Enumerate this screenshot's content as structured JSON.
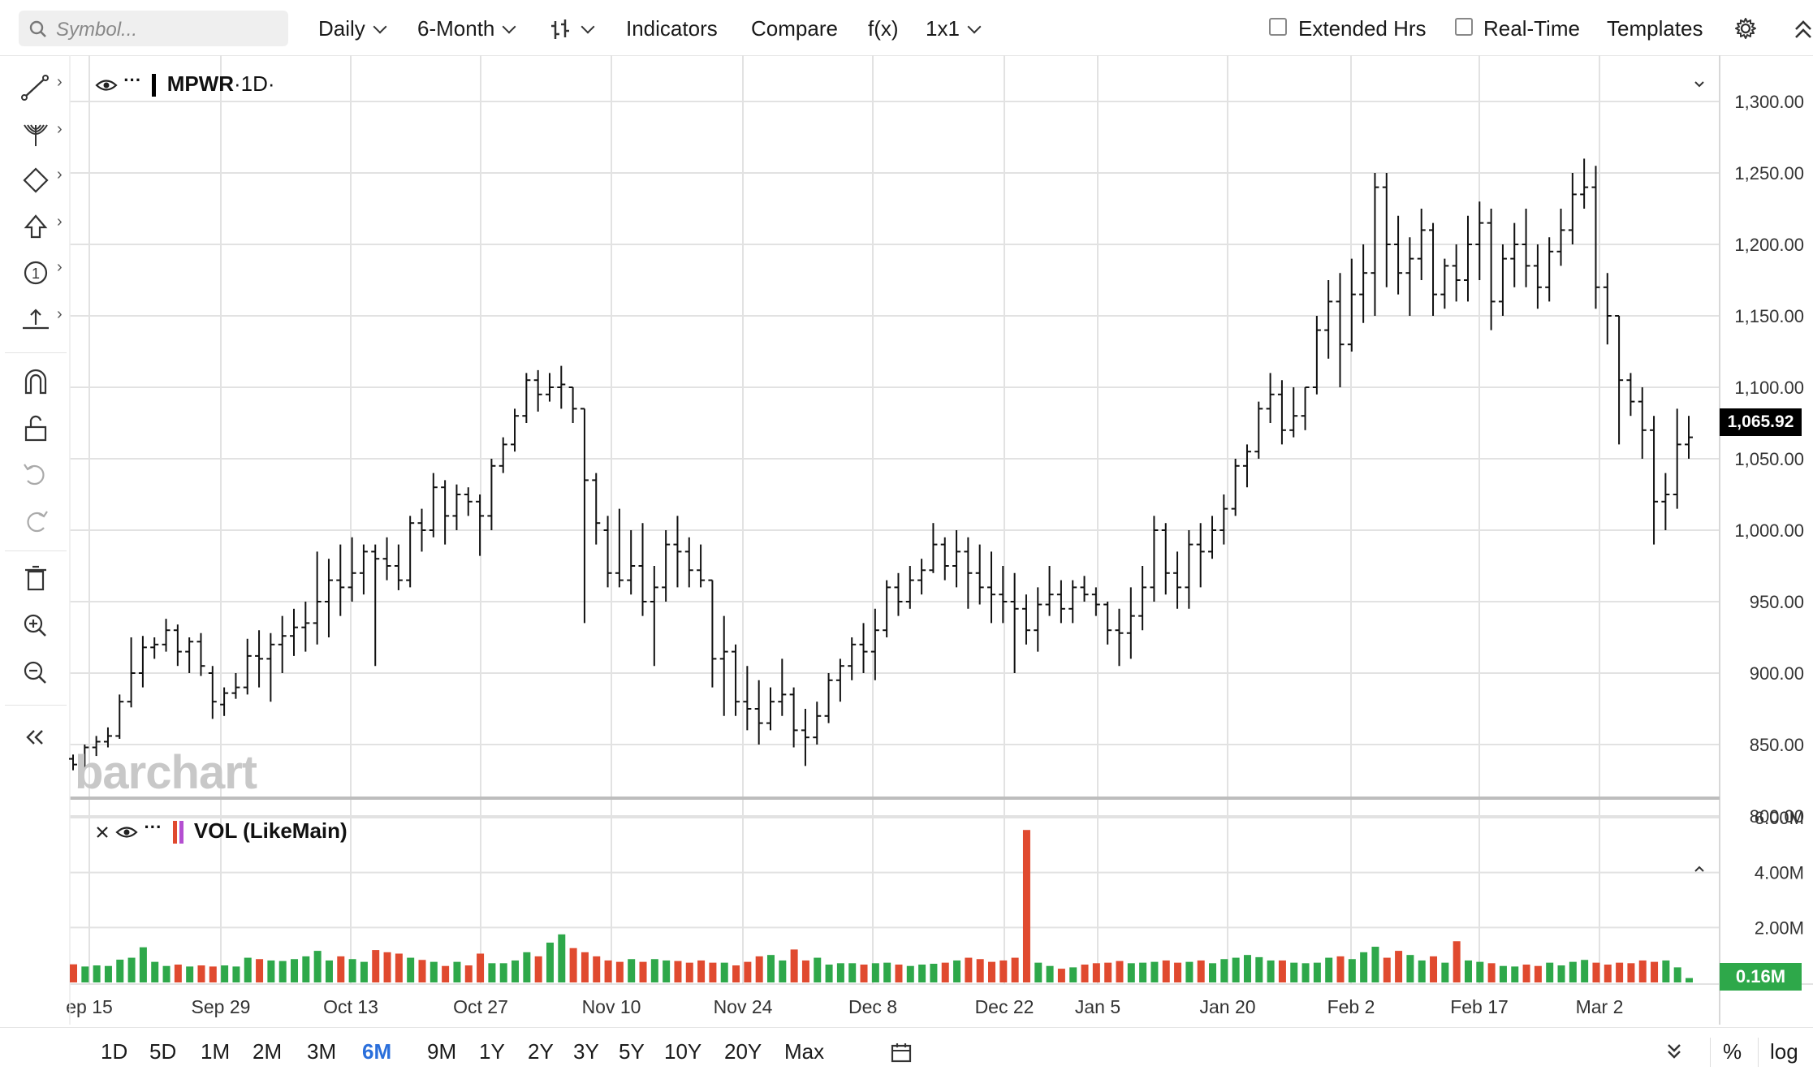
{
  "toolbar": {
    "search_placeholder": "Symbol...",
    "interval": "Daily",
    "period": "6-Month",
    "indicators": "Indicators",
    "compare": "Compare",
    "fx": "f(x)",
    "layout": "1x1",
    "extended_hours": "Extended Hrs",
    "real_time": "Real-Time",
    "templates": "Templates"
  },
  "legend": {
    "symbol": "MPWR",
    "interval": "·1D·",
    "volume_label": "VOL (LikeMain)"
  },
  "watermark": "barchart",
  "ranges": [
    "1D",
    "5D",
    "1M",
    "2M",
    "3M",
    "6M",
    "9M",
    "1Y",
    "2Y",
    "3Y",
    "5Y",
    "10Y",
    "20Y",
    "Max"
  ],
  "active_range": "6M",
  "bottom_right": {
    "percent": "%",
    "log": "log"
  },
  "colors": {
    "up": "#2ea84a",
    "down": "#e04a2f",
    "active": "#2a6fdb"
  },
  "chart_data": {
    "type": "ohlc-bar",
    "symbol": "MPWR",
    "price_axis": {
      "min": 800,
      "max": 1300,
      "ticks": [
        "800.00",
        "850.00",
        "900.00",
        "950.00",
        "1,000.00",
        "1,050.00",
        "1,100.00",
        "1,150.00",
        "1,200.00",
        "1,250.00",
        "1,300.00"
      ]
    },
    "volume_axis": {
      "max_millions": 6,
      "ticks": [
        "2.00M",
        "4.00M",
        "6.00M"
      ]
    },
    "x_labels": [
      "ep 15",
      "Sep 29",
      "Oct 13",
      "Oct 27",
      "Nov 10",
      "Nov 24",
      "Dec 8",
      "Dec 22",
      "Jan 5",
      "Jan 20",
      "Feb 2",
      "Feb 17",
      "Mar 2"
    ],
    "last_price": "1,065.92",
    "last_volume": "0.16M",
    "bars": [
      [
        840,
        843,
        832,
        836,
        0.66
      ],
      [
        836,
        850,
        833,
        848,
        0.58
      ],
      [
        848,
        856,
        842,
        852,
        0.62
      ],
      [
        852,
        862,
        848,
        856,
        0.6
      ],
      [
        856,
        885,
        854,
        880,
        0.83
      ],
      [
        880,
        925,
        876,
        900,
        0.9
      ],
      [
        900,
        926,
        890,
        918,
        1.28
      ],
      [
        918,
        925,
        910,
        920,
        0.75
      ],
      [
        920,
        938,
        915,
        930,
        0.6
      ],
      [
        930,
        934,
        905,
        915,
        0.65
      ],
      [
        915,
        925,
        900,
        922,
        0.58
      ],
      [
        922,
        928,
        898,
        905,
        0.62
      ],
      [
        900,
        905,
        868,
        880,
        0.58
      ],
      [
        878,
        890,
        870,
        886,
        0.62
      ],
      [
        886,
        900,
        882,
        890,
        0.58
      ],
      [
        890,
        924,
        885,
        912,
        0.9
      ],
      [
        912,
        930,
        890,
        910,
        0.85
      ],
      [
        910,
        928,
        880,
        920,
        0.8
      ],
      [
        920,
        940,
        900,
        926,
        0.78
      ],
      [
        926,
        945,
        912,
        932,
        0.85
      ],
      [
        932,
        950,
        915,
        935,
        0.95
      ],
      [
        935,
        985,
        920,
        950,
        1.15
      ],
      [
        950,
        980,
        925,
        965,
        0.8
      ],
      [
        965,
        990,
        940,
        960,
        0.95
      ],
      [
        960,
        995,
        950,
        970,
        0.85
      ],
      [
        970,
        990,
        955,
        985,
        0.75
      ],
      [
        985,
        990,
        905,
        980,
        1.18
      ],
      [
        980,
        995,
        965,
        975,
        1.1
      ],
      [
        975,
        990,
        958,
        965,
        1.05
      ],
      [
        965,
        1010,
        960,
        1005,
        0.9
      ],
      [
        1005,
        1015,
        985,
        1000,
        0.82
      ],
      [
        1000,
        1040,
        995,
        1030,
        0.75
      ],
      [
        1030,
        1035,
        990,
        1010,
        0.6
      ],
      [
        1010,
        1032,
        1000,
        1025,
        0.75
      ],
      [
        1025,
        1030,
        1010,
        1020,
        0.62
      ],
      [
        1020,
        1025,
        982,
        1010,
        1.05
      ],
      [
        1010,
        1050,
        1000,
        1045,
        0.7
      ],
      [
        1045,
        1065,
        1040,
        1060,
        0.7
      ],
      [
        1060,
        1085,
        1055,
        1080,
        0.8
      ],
      [
        1080,
        1110,
        1075,
        1105,
        1.1
      ],
      [
        1105,
        1112,
        1083,
        1095,
        0.95
      ],
      [
        1095,
        1110,
        1090,
        1100,
        1.45
      ],
      [
        1100,
        1115,
        1085,
        1102,
        1.75
      ],
      [
        1100,
        1100,
        1075,
        1085,
        1.25
      ],
      [
        1085,
        1040,
        935,
        1035,
        1.1
      ],
      [
        1035,
        1040,
        990,
        1005,
        0.95
      ],
      [
        1000,
        1010,
        960,
        970,
        0.8
      ],
      [
        970,
        1015,
        960,
        965,
        0.75
      ],
      [
        965,
        1000,
        955,
        975,
        0.85
      ],
      [
        975,
        1005,
        940,
        950,
        0.75
      ],
      [
        950,
        975,
        905,
        960,
        0.85
      ],
      [
        960,
        1000,
        950,
        990,
        0.8
      ],
      [
        990,
        1010,
        960,
        985,
        0.78
      ],
      [
        985,
        995,
        960,
        972,
        0.72
      ],
      [
        972,
        990,
        960,
        965,
        0.8
      ],
      [
        965,
        945,
        890,
        910,
        0.72
      ],
      [
        910,
        940,
        870,
        915,
        0.72
      ],
      [
        915,
        920,
        870,
        880,
        0.62
      ],
      [
        880,
        905,
        860,
        875,
        0.75
      ],
      [
        875,
        895,
        850,
        865,
        0.95
      ],
      [
        865,
        890,
        860,
        880,
        1.0
      ],
      [
        880,
        910,
        870,
        885,
        0.8
      ],
      [
        885,
        890,
        848,
        860,
        1.2
      ],
      [
        860,
        875,
        835,
        855,
        0.8
      ],
      [
        855,
        880,
        850,
        870,
        0.9
      ],
      [
        870,
        900,
        865,
        895,
        0.65
      ],
      [
        895,
        910,
        880,
        905,
        0.7
      ],
      [
        905,
        925,
        895,
        920,
        0.7
      ],
      [
        920,
        935,
        900,
        915,
        0.65
      ],
      [
        915,
        945,
        895,
        930,
        0.7
      ],
      [
        930,
        965,
        925,
        960,
        0.72
      ],
      [
        960,
        970,
        940,
        950,
        0.65
      ],
      [
        950,
        975,
        945,
        965,
        0.6
      ],
      [
        965,
        980,
        955,
        972,
        0.65
      ],
      [
        972,
        1005,
        970,
        990,
        0.68
      ],
      [
        990,
        995,
        965,
        975,
        0.72
      ],
      [
        975,
        1000,
        960,
        985,
        0.8
      ],
      [
        985,
        995,
        945,
        970,
        0.9
      ],
      [
        970,
        990,
        948,
        960,
        0.85
      ],
      [
        960,
        985,
        935,
        955,
        0.75
      ],
      [
        955,
        975,
        935,
        950,
        0.8
      ],
      [
        950,
        970,
        900,
        945,
        0.9
      ],
      [
        945,
        955,
        920,
        930,
        5.55
      ],
      [
        930,
        960,
        915,
        948,
        0.72
      ],
      [
        948,
        975,
        940,
        955,
        0.6
      ],
      [
        955,
        965,
        935,
        945,
        0.5
      ],
      [
        945,
        965,
        935,
        960,
        0.55
      ],
      [
        960,
        968,
        950,
        955,
        0.65
      ],
      [
        955,
        960,
        940,
        948,
        0.7
      ],
      [
        948,
        950,
        920,
        930,
        0.72
      ],
      [
        930,
        945,
        905,
        928,
        0.78
      ],
      [
        928,
        960,
        910,
        940,
        0.7
      ],
      [
        940,
        975,
        930,
        960,
        0.72
      ],
      [
        960,
        1010,
        950,
        1000,
        0.75
      ],
      [
        1000,
        1005,
        955,
        970,
        0.8
      ],
      [
        970,
        985,
        945,
        960,
        0.72
      ],
      [
        960,
        1000,
        945,
        990,
        0.75
      ],
      [
        990,
        1005,
        960,
        985,
        0.8
      ],
      [
        985,
        1010,
        980,
        1000,
        0.7
      ],
      [
        1000,
        1025,
        990,
        1015,
        0.85
      ],
      [
        1015,
        1050,
        1010,
        1045,
        0.9
      ],
      [
        1045,
        1060,
        1030,
        1055,
        1.0
      ],
      [
        1055,
        1090,
        1050,
        1085,
        0.92
      ],
      [
        1085,
        1110,
        1075,
        1095,
        0.8
      ],
      [
        1095,
        1105,
        1060,
        1070,
        0.8
      ],
      [
        1070,
        1100,
        1065,
        1080,
        0.72
      ],
      [
        1080,
        1100,
        1070,
        1100,
        0.7
      ],
      [
        1100,
        1150,
        1095,
        1140,
        0.72
      ],
      [
        1140,
        1175,
        1120,
        1160,
        0.9
      ],
      [
        1160,
        1180,
        1100,
        1130,
        0.95
      ],
      [
        1130,
        1190,
        1125,
        1165,
        0.85
      ],
      [
        1165,
        1200,
        1145,
        1180,
        1.1
      ],
      [
        1180,
        1250,
        1150,
        1240,
        1.3
      ],
      [
        1240,
        1250,
        1170,
        1200,
        0.9
      ],
      [
        1200,
        1220,
        1165,
        1180,
        1.15
      ],
      [
        1180,
        1205,
        1150,
        1190,
        1.0
      ],
      [
        1190,
        1225,
        1175,
        1210,
        0.8
      ],
      [
        1210,
        1215,
        1150,
        1165,
        0.95
      ],
      [
        1165,
        1190,
        1155,
        1185,
        0.72
      ],
      [
        1185,
        1200,
        1160,
        1175,
        1.5
      ],
      [
        1175,
        1220,
        1160,
        1200,
        0.8
      ],
      [
        1200,
        1230,
        1175,
        1215,
        0.75
      ],
      [
        1215,
        1225,
        1140,
        1160,
        0.7
      ],
      [
        1160,
        1200,
        1150,
        1190,
        0.6
      ],
      [
        1190,
        1215,
        1170,
        1200,
        0.58
      ],
      [
        1200,
        1225,
        1170,
        1185,
        0.65
      ],
      [
        1185,
        1200,
        1155,
        1170,
        0.6
      ],
      [
        1170,
        1205,
        1160,
        1195,
        0.72
      ],
      [
        1195,
        1225,
        1185,
        1210,
        0.62
      ],
      [
        1210,
        1250,
        1200,
        1235,
        0.75
      ],
      [
        1235,
        1260,
        1225,
        1240,
        0.82
      ],
      [
        1240,
        1255,
        1155,
        1170,
        0.72
      ],
      [
        1170,
        1180,
        1130,
        1150,
        0.65
      ],
      [
        1150,
        1145,
        1060,
        1105,
        0.72
      ],
      [
        1105,
        1110,
        1080,
        1090,
        0.7
      ],
      [
        1090,
        1100,
        1050,
        1070,
        0.8
      ],
      [
        1070,
        1080,
        990,
        1020,
        0.75
      ],
      [
        1020,
        1040,
        1000,
        1025,
        0.8
      ],
      [
        1025,
        1085,
        1015,
        1060,
        0.55
      ],
      [
        1060,
        1080,
        1050,
        1065,
        0.16
      ]
    ]
  }
}
